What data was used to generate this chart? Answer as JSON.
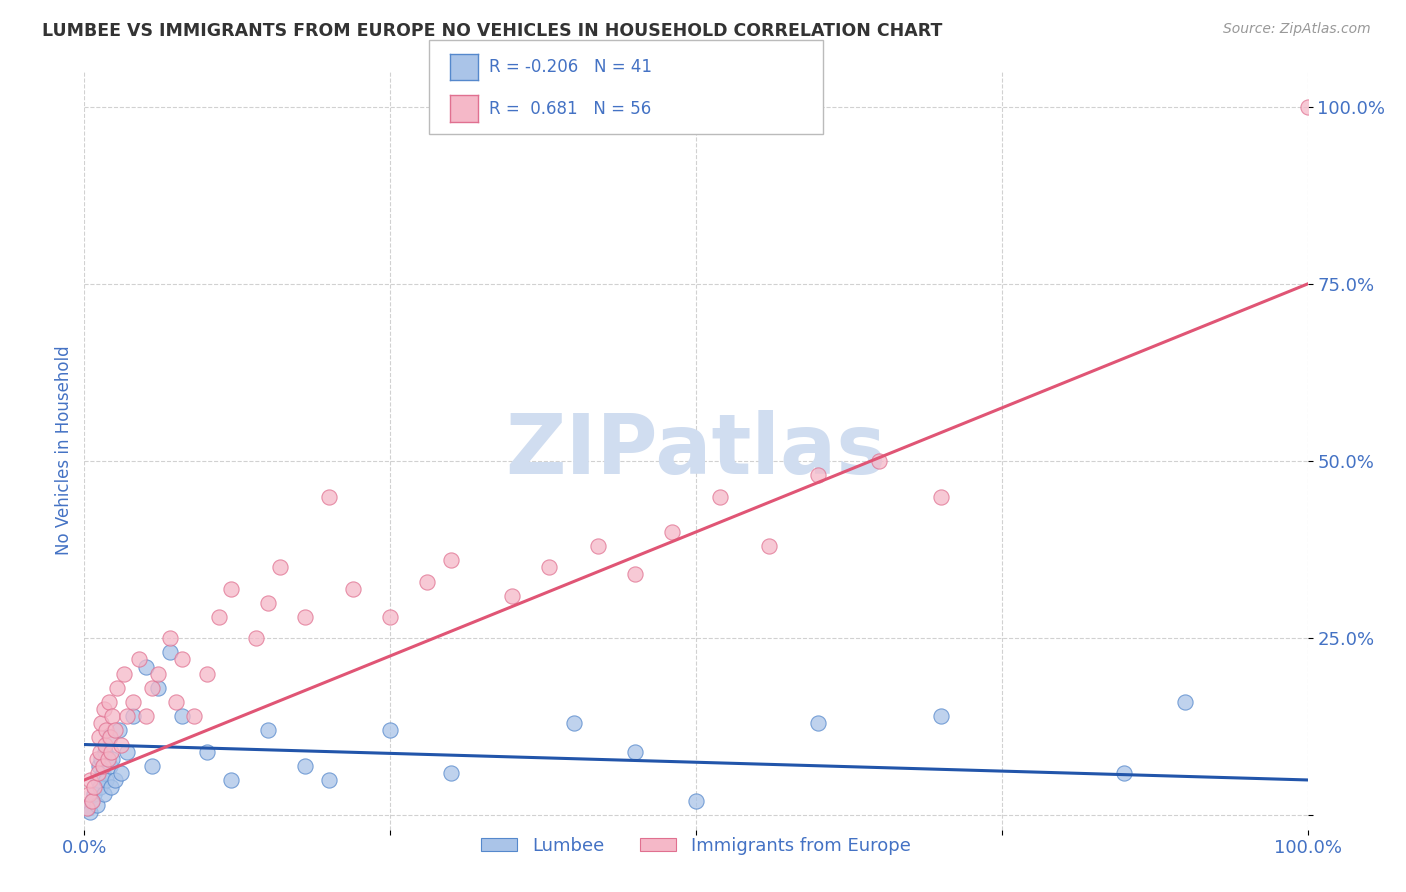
{
  "title": "LUMBEE VS IMMIGRANTS FROM EUROPE NO VEHICLES IN HOUSEHOLD CORRELATION CHART",
  "source": "Source: ZipAtlas.com",
  "ylabel": "No Vehicles in Household",
  "xlim": [
    0,
    100
  ],
  "ylim": [
    -2,
    105
  ],
  "grid_color": "#cccccc",
  "background_color": "#ffffff",
  "title_color": "#333333",
  "axis_label_color": "#4472c4",
  "watermark_text": "ZIPatlas",
  "watermark_color": "#d0ddf0",
  "lumbee_color": "#aac4e8",
  "lumbee_edge_color": "#5588cc",
  "europe_color": "#f5b8c8",
  "europe_edge_color": "#e07090",
  "lumbee_R": -0.206,
  "lumbee_N": 41,
  "europe_R": 0.681,
  "europe_N": 56,
  "lumbee_line_color": "#2255aa",
  "europe_line_color": "#e05575",
  "lumbee_line_intercept": 10.0,
  "lumbee_line_slope": -0.05,
  "europe_line_intercept": 5.0,
  "europe_line_slope": 0.7,
  "lumbee_x": [
    0.3,
    0.5,
    0.6,
    0.8,
    1.0,
    1.1,
    1.2,
    1.3,
    1.4,
    1.5,
    1.6,
    1.7,
    1.8,
    2.0,
    2.1,
    2.2,
    2.3,
    2.5,
    2.8,
    3.0,
    3.5,
    4.0,
    5.0,
    5.5,
    6.0,
    7.0,
    8.0,
    10.0,
    12.0,
    15.0,
    18.0,
    20.0,
    25.0,
    30.0,
    40.0,
    45.0,
    50.0,
    60.0,
    70.0,
    85.0,
    90.0
  ],
  "lumbee_y": [
    1.0,
    0.5,
    2.0,
    3.0,
    1.5,
    5.0,
    7.0,
    4.0,
    8.0,
    6.0,
    3.0,
    9.0,
    5.0,
    11.0,
    7.0,
    4.0,
    8.0,
    5.0,
    12.0,
    6.0,
    9.0,
    14.0,
    21.0,
    7.0,
    18.0,
    23.0,
    14.0,
    9.0,
    5.0,
    12.0,
    7.0,
    5.0,
    12.0,
    6.0,
    13.0,
    9.0,
    2.0,
    13.0,
    14.0,
    6.0,
    16.0
  ],
  "europe_x": [
    0.2,
    0.4,
    0.5,
    0.6,
    0.8,
    1.0,
    1.1,
    1.2,
    1.3,
    1.4,
    1.5,
    1.6,
    1.7,
    1.8,
    1.9,
    2.0,
    2.1,
    2.2,
    2.3,
    2.5,
    2.7,
    3.0,
    3.2,
    3.5,
    4.0,
    4.5,
    5.0,
    5.5,
    6.0,
    7.0,
    7.5,
    8.0,
    9.0,
    10.0,
    11.0,
    12.0,
    14.0,
    15.0,
    16.0,
    18.0,
    20.0,
    22.0,
    25.0,
    28.0,
    30.0,
    35.0,
    38.0,
    42.0,
    45.0,
    48.0,
    52.0,
    56.0,
    60.0,
    65.0,
    70.0,
    100.0
  ],
  "europe_y": [
    1.0,
    3.0,
    5.0,
    2.0,
    4.0,
    8.0,
    6.0,
    11.0,
    9.0,
    13.0,
    7.0,
    15.0,
    10.0,
    12.0,
    8.0,
    16.0,
    11.0,
    9.0,
    14.0,
    12.0,
    18.0,
    10.0,
    20.0,
    14.0,
    16.0,
    22.0,
    14.0,
    18.0,
    20.0,
    25.0,
    16.0,
    22.0,
    14.0,
    20.0,
    28.0,
    32.0,
    25.0,
    30.0,
    35.0,
    28.0,
    45.0,
    32.0,
    28.0,
    33.0,
    36.0,
    31.0,
    35.0,
    38.0,
    34.0,
    40.0,
    45.0,
    38.0,
    48.0,
    50.0,
    45.0,
    100.0
  ]
}
